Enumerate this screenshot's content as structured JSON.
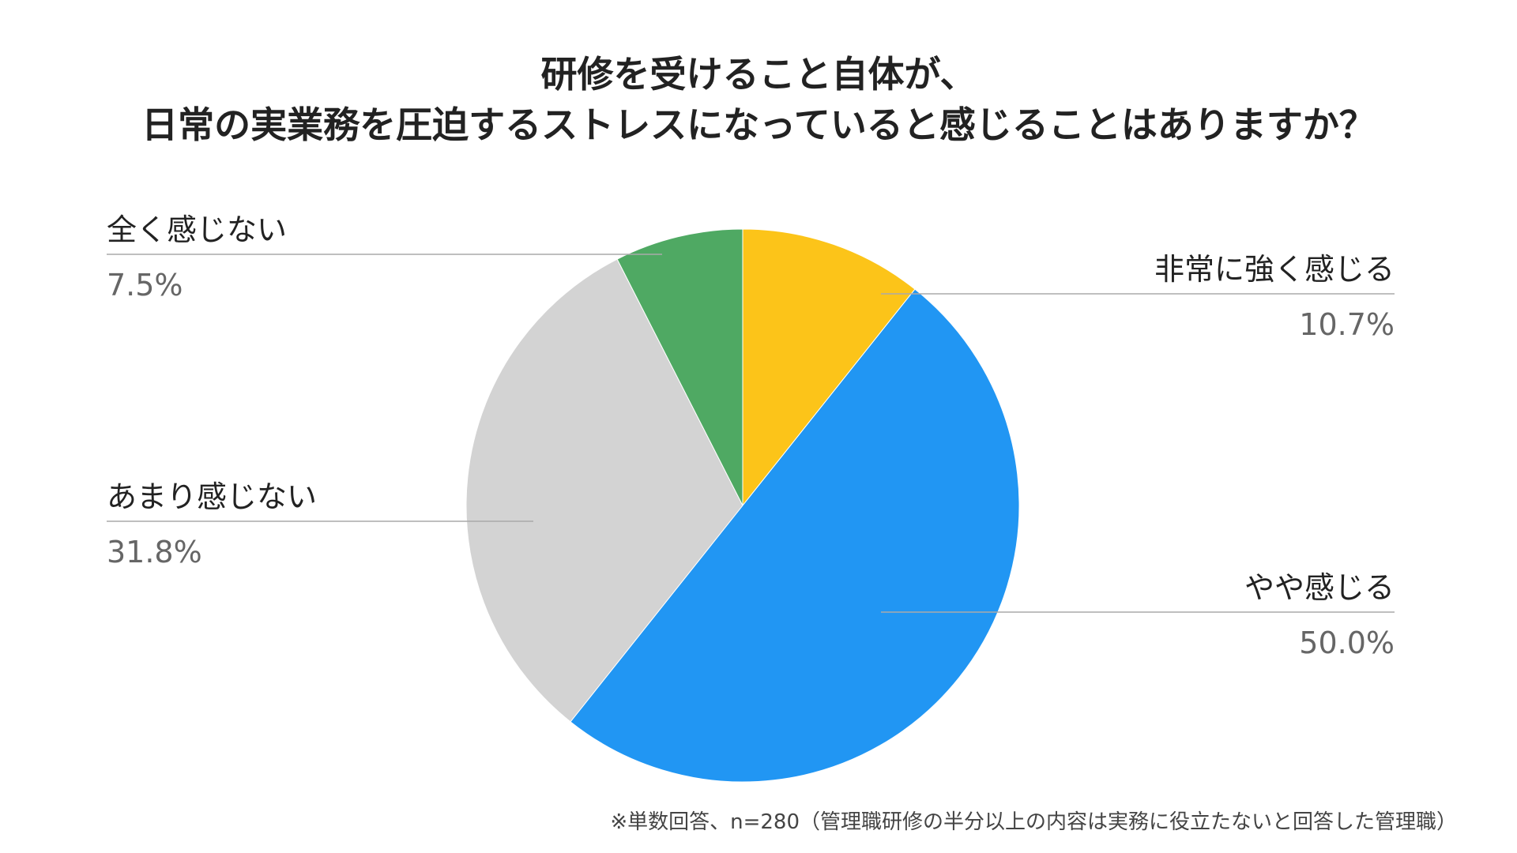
{
  "title": {
    "line1": "研修を受けること自体が、",
    "line2": "日常の実業務を圧迫するストレスになっていると感じることはありますか？"
  },
  "footnote": "※単数回答、n=280（管理職研修の半分以上の内容は実務に役立たないと回答した管理職）",
  "chart_data": {
    "type": "pie",
    "title": "研修を受けること自体が、日常の実業務を圧迫するストレスになっていると感じることはありますか？",
    "start": "top",
    "direction": "clockwise",
    "legend": "none",
    "slices": [
      {
        "label": "非常に強く感じる",
        "value": 10.7,
        "display": "10.7%",
        "color": "#FCC419",
        "side": "right"
      },
      {
        "label": "やや感じる",
        "value": 50.0,
        "display": "50.0%",
        "color": "#2196F3",
        "side": "right"
      },
      {
        "label": "あまり感じない",
        "value": 31.8,
        "display": "31.8%",
        "color": "#D3D3D3",
        "side": "left"
      },
      {
        "label": "全く感じない",
        "value": 7.5,
        "display": "7.5%",
        "color": "#4FA963",
        "side": "left"
      }
    ]
  },
  "colors": {
    "label_text": "#222222",
    "value_text": "#666666",
    "leader_line": "#AAAAAA"
  }
}
